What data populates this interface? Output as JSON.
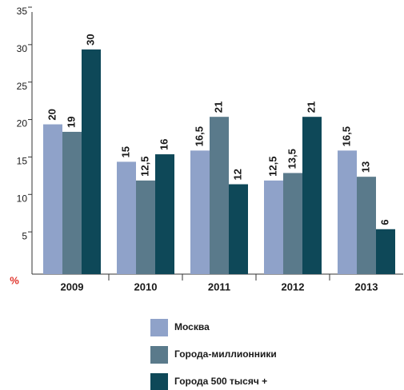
{
  "chart_data": {
    "type": "bar",
    "y_label": "%",
    "categories": [
      "2009",
      "2010",
      "2011",
      "2012",
      "2013"
    ],
    "series": [
      {
        "name": "Москва",
        "color": "#8fa2c9",
        "values": [
          20,
          15,
          16.5,
          12.5,
          16.5
        ],
        "value_labels": [
          "20",
          "15",
          "16,5",
          "12,5",
          "16,5"
        ]
      },
      {
        "name": "Города-миллионники",
        "color": "#5a7a8b",
        "values": [
          19,
          12.5,
          21,
          13.5,
          13
        ],
        "value_labels": [
          "19",
          "12,5",
          "21",
          "13,5",
          "13"
        ]
      },
      {
        "name": "Города 500 тысяч +",
        "color": "#0e4858",
        "values": [
          30,
          16,
          12,
          21,
          6
        ],
        "value_labels": [
          "30",
          "16",
          "12",
          "21",
          "6"
        ]
      }
    ],
    "ylim": [
      0,
      35
    ],
    "yticks": [
      5,
      10,
      15,
      20,
      25,
      30,
      35
    ],
    "grid": false
  }
}
